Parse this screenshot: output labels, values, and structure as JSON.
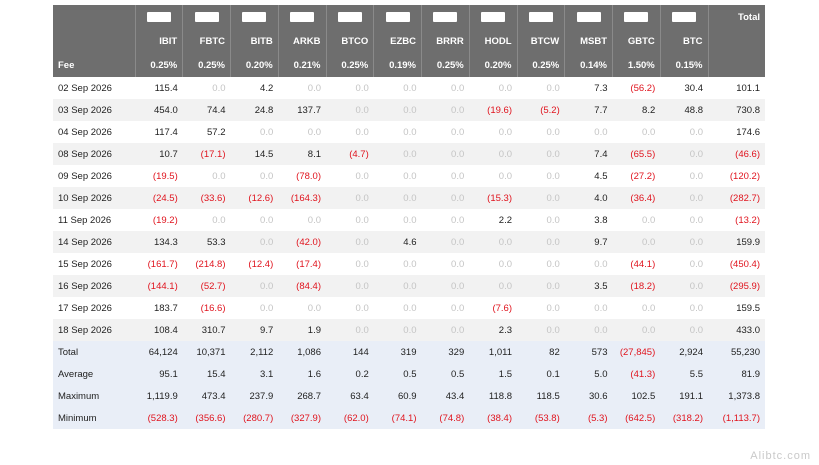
{
  "header": {
    "total_label": "Total",
    "tickers": [
      "IBIT",
      "FBTC",
      "BITB",
      "ARKB",
      "BTCO",
      "EZBC",
      "BRRR",
      "HODL",
      "BTCW",
      "MSBT",
      "GBTC",
      "BTC"
    ]
  },
  "fee": {
    "label": "Fee",
    "values": [
      "0.25%",
      "0.25%",
      "0.20%",
      "0.21%",
      "0.25%",
      "0.19%",
      "0.25%",
      "0.20%",
      "0.25%",
      "0.14%",
      "1.50%",
      "0.15%"
    ]
  },
  "rows": [
    {
      "date": "02 Sep 2026",
      "values": [
        "115.4",
        "0.0",
        "4.2",
        "0.0",
        "0.0",
        "0.0",
        "0.0",
        "0.0",
        "0.0",
        "7.3",
        "(56.2)",
        "30.4",
        "101.1"
      ]
    },
    {
      "date": "03 Sep 2026",
      "values": [
        "454.0",
        "74.4",
        "24.8",
        "137.7",
        "0.0",
        "0.0",
        "0.0",
        "(19.6)",
        "(5.2)",
        "7.7",
        "8.2",
        "48.8",
        "730.8"
      ]
    },
    {
      "date": "04 Sep 2026",
      "values": [
        "117.4",
        "57.2",
        "0.0",
        "0.0",
        "0.0",
        "0.0",
        "0.0",
        "0.0",
        "0.0",
        "0.0",
        "0.0",
        "0.0",
        "174.6"
      ]
    },
    {
      "date": "08 Sep 2026",
      "values": [
        "10.7",
        "(17.1)",
        "14.5",
        "8.1",
        "(4.7)",
        "0.0",
        "0.0",
        "0.0",
        "0.0",
        "7.4",
        "(65.5)",
        "0.0",
        "(46.6)"
      ]
    },
    {
      "date": "09 Sep 2026",
      "values": [
        "(19.5)",
        "0.0",
        "0.0",
        "(78.0)",
        "0.0",
        "0.0",
        "0.0",
        "0.0",
        "0.0",
        "4.5",
        "(27.2)",
        "0.0",
        "(120.2)"
      ]
    },
    {
      "date": "10 Sep 2026",
      "values": [
        "(24.5)",
        "(33.6)",
        "(12.6)",
        "(164.3)",
        "0.0",
        "0.0",
        "0.0",
        "(15.3)",
        "0.0",
        "4.0",
        "(36.4)",
        "0.0",
        "(282.7)"
      ]
    },
    {
      "date": "11 Sep 2026",
      "values": [
        "(19.2)",
        "0.0",
        "0.0",
        "0.0",
        "0.0",
        "0.0",
        "0.0",
        "2.2",
        "0.0",
        "3.8",
        "0.0",
        "0.0",
        "(13.2)"
      ]
    },
    {
      "date": "14 Sep 2026",
      "values": [
        "134.3",
        "53.3",
        "0.0",
        "(42.0)",
        "0.0",
        "4.6",
        "0.0",
        "0.0",
        "0.0",
        "9.7",
        "0.0",
        "0.0",
        "159.9"
      ]
    },
    {
      "date": "15 Sep 2026",
      "values": [
        "(161.7)",
        "(214.8)",
        "(12.4)",
        "(17.4)",
        "0.0",
        "0.0",
        "0.0",
        "0.0",
        "0.0",
        "0.0",
        "(44.1)",
        "0.0",
        "(450.4)"
      ]
    },
    {
      "date": "16 Sep 2026",
      "values": [
        "(144.1)",
        "(52.7)",
        "0.0",
        "(84.4)",
        "0.0",
        "0.0",
        "0.0",
        "0.0",
        "0.0",
        "3.5",
        "(18.2)",
        "0.0",
        "(295.9)"
      ]
    },
    {
      "date": "17 Sep 2026",
      "values": [
        "183.7",
        "(16.6)",
        "0.0",
        "0.0",
        "0.0",
        "0.0",
        "0.0",
        "(7.6)",
        "0.0",
        "0.0",
        "0.0",
        "0.0",
        "159.5"
      ]
    },
    {
      "date": "18 Sep 2026",
      "values": [
        "108.4",
        "310.7",
        "9.7",
        "1.9",
        "0.0",
        "0.0",
        "0.0",
        "2.3",
        "0.0",
        "0.0",
        "0.0",
        "0.0",
        "433.0"
      ]
    }
  ],
  "summary": [
    {
      "label": "Total",
      "values": [
        "64,124",
        "10,371",
        "2,112",
        "1,086",
        "144",
        "319",
        "329",
        "1,011",
        "82",
        "573",
        "(27,845)",
        "2,924",
        "55,230"
      ]
    },
    {
      "label": "Average",
      "values": [
        "95.1",
        "15.4",
        "3.1",
        "1.6",
        "0.2",
        "0.5",
        "0.5",
        "1.5",
        "0.1",
        "5.0",
        "(41.3)",
        "5.5",
        "81.9"
      ]
    },
    {
      "label": "Maximum",
      "values": [
        "1,119.9",
        "473.4",
        "237.9",
        "268.7",
        "63.4",
        "60.9",
        "43.4",
        "118.8",
        "118.5",
        "30.6",
        "102.5",
        "191.1",
        "1,373.8"
      ]
    },
    {
      "label": "Minimum",
      "values": [
        "(528.3)",
        "(356.6)",
        "(280.7)",
        "(327.9)",
        "(62.0)",
        "(74.1)",
        "(74.8)",
        "(38.4)",
        "(53.8)",
        "(5.3)",
        "(642.5)",
        "(318.2)",
        "(1,113.7)"
      ]
    }
  ],
  "watermark": "Alibtc.com"
}
